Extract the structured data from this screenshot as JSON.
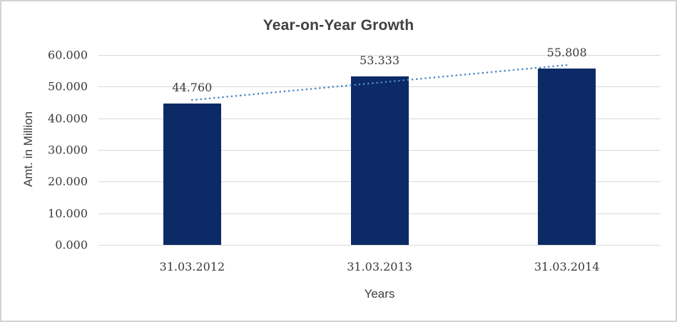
{
  "chart_data": {
    "type": "bar",
    "title": "Year-on-Year Growth",
    "xlabel": "Years",
    "ylabel": "Amt. in Million",
    "categories": [
      "31.03.2012",
      "31.03.2013",
      "31.03.2014"
    ],
    "values": [
      44.76,
      53.333,
      55.808
    ],
    "data_labels": [
      "44.760",
      "53.333",
      "55.808"
    ],
    "y_ticks": [
      "60.000",
      "50.000",
      "40.000",
      "30.000",
      "20.000",
      "10.000",
      "0.000"
    ],
    "ylim": [
      0,
      60
    ],
    "grid": true,
    "legend": false,
    "bar_color": "#0b2a66",
    "trendline": {
      "type": "linear",
      "style": "dotted",
      "color": "#4f87c7",
      "fit_values": [
        45.78,
        56.82
      ]
    },
    "colors": {
      "title_text": "#404040",
      "axis_text": "#3a3a3a",
      "gridline": "#d9d9d9",
      "frame_border": "#d3d3d3",
      "background": "#ffffff"
    }
  }
}
